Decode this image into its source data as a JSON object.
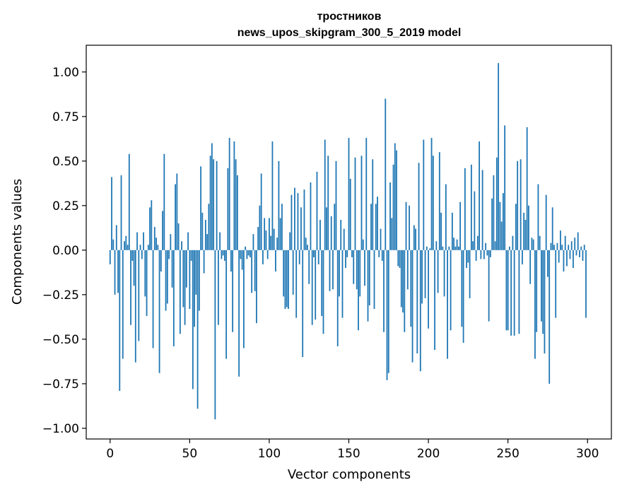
{
  "chart_data": {
    "type": "bar",
    "title": "тростников",
    "subtitle": "news_upos_skipgram_300_5_2019 model",
    "xlabel": "Vector components",
    "ylabel": "Components values",
    "xlim": [
      -15,
      315
    ],
    "ylim": [
      -1.06,
      1.15
    ],
    "xticks": [
      0,
      50,
      100,
      150,
      200,
      250,
      300
    ],
    "xtick_labels": [
      "0",
      "50",
      "100",
      "150",
      "200",
      "250",
      "300"
    ],
    "yticks": [
      -1.0,
      -0.75,
      -0.5,
      -0.25,
      0.0,
      0.25,
      0.5,
      0.75,
      1.0
    ],
    "ytick_labels": [
      "−1.00",
      "−0.75",
      "−0.50",
      "−0.25",
      "0.00",
      "0.25",
      "0.50",
      "0.75",
      "1.00"
    ],
    "grid": false,
    "bar_color": "#1f77b4",
    "x": "0..299",
    "values": [
      -0.08,
      0.41,
      0.06,
      -0.25,
      0.14,
      -0.24,
      -0.79,
      0.42,
      -0.61,
      0.05,
      0.08,
      0.03,
      0.54,
      -0.42,
      -0.06,
      -0.2,
      -0.63,
      0.1,
      -0.51,
      0.03,
      -0.05,
      0.1,
      -0.26,
      -0.37,
      0.03,
      0.24,
      0.28,
      -0.55,
      0.13,
      0.07,
      0.03,
      -0.69,
      -0.12,
      0.22,
      0.54,
      -0.34,
      -0.3,
      -0.05,
      0.09,
      -0.21,
      -0.54,
      0.37,
      0.43,
      0.15,
      -0.47,
      0.05,
      -0.32,
      -0.42,
      -0.21,
      0.1,
      -0.33,
      -0.06,
      -0.78,
      -0.43,
      -0.25,
      -0.89,
      -0.34,
      0.47,
      0.21,
      -0.13,
      0.17,
      0.09,
      0.26,
      0.53,
      0.6,
      0.51,
      -0.95,
      0.5,
      -0.42,
      0.1,
      -0.05,
      -0.03,
      -0.06,
      -0.61,
      0.46,
      0.63,
      -0.12,
      -0.46,
      0.61,
      0.51,
      0.42,
      -0.71,
      -0.05,
      -0.11,
      -0.55,
      0.02,
      -0.05,
      -0.03,
      -0.04,
      -0.24,
      0.09,
      -0.23,
      -0.41,
      0.13,
      0.25,
      0.43,
      -0.08,
      0.18,
      0.11,
      -0.05,
      0.18,
      0.08,
      0.61,
      0.12,
      -0.12,
      0.07,
      0.5,
      0.18,
      0.26,
      -0.26,
      -0.33,
      -0.32,
      -0.33,
      0.1,
      0.31,
      -0.25,
      0.35,
      -0.38,
      0.32,
      -0.08,
      0.24,
      -0.6,
      0.34,
      0.07,
      0.03,
      -0.19,
      0.38,
      -0.42,
      -0.04,
      -0.39,
      0.44,
      -0.08,
      0.17,
      -0.37,
      -0.47,
      0.62,
      0.24,
      0.53,
      -0.23,
      0.19,
      -0.22,
      0.26,
      0.5,
      -0.54,
      -0.26,
      0.17,
      -0.38,
      0.12,
      -0.1,
      -0.04,
      0.63,
      0.4,
      -0.04,
      -0.19,
      0.52,
      -0.22,
      -0.45,
      -0.26,
      0.53,
      0.06,
      -0.2,
      0.63,
      -0.4,
      -0.31,
      0.26,
      0.51,
      -0.33,
      0.26,
      0.3,
      -0.04,
      0.12,
      -0.06,
      -0.46,
      0.85,
      -0.73,
      -0.69,
      0.38,
      0.18,
      0.48,
      0.6,
      0.56,
      -0.09,
      -0.1,
      -0.32,
      -0.35,
      -0.46,
      0.27,
      -0.22,
      0.25,
      -0.43,
      -0.63,
      0.14,
      0.12,
      -0.58,
      0.49,
      -0.68,
      -0.3,
      0.62,
      -0.27,
      0.02,
      -0.44,
      0.01,
      0.63,
      0.53,
      -0.56,
      0.05,
      -0.24,
      0.55,
      0.21,
      0.02,
      -0.26,
      0.37,
      -0.61,
      0.02,
      -0.45,
      0.21,
      0.07,
      0.02,
      0.06,
      0.02,
      0.27,
      -0.43,
      -0.52,
      0.46,
      -0.1,
      -0.07,
      -0.27,
      0.48,
      0.05,
      0.33,
      -0.06,
      0.08,
      0.61,
      -0.05,
      0.45,
      -0.05,
      0.04,
      -0.03,
      -0.4,
      -0.04,
      0.29,
      0.42,
      0.05,
      0.52,
      1.05,
      0.27,
      0.16,
      0.32,
      0.7,
      -0.45,
      -0.45,
      0.02,
      -0.48,
      0.08,
      -0.48,
      0.26,
      0.5,
      -0.47,
      0.51,
      -0.08,
      0.21,
      0.17,
      0.69,
      0.25,
      -0.19,
      0.07,
      0.06,
      -0.61,
      -0.46,
      0.37,
      0.08,
      -0.4,
      -0.47,
      -0.58,
      0.31,
      -0.15,
      -0.75,
      0.04,
      0.24,
      0.03,
      -0.38,
      0.04,
      -0.07,
      0.11,
      0.03,
      -0.12,
      0.08,
      -0.09,
      0.03,
      -0.05,
      0.05,
      -0.1,
      0.07,
      -0.03,
      0.1,
      -0.04,
      0.02,
      -0.06,
      0.03,
      -0.38
    ]
  }
}
